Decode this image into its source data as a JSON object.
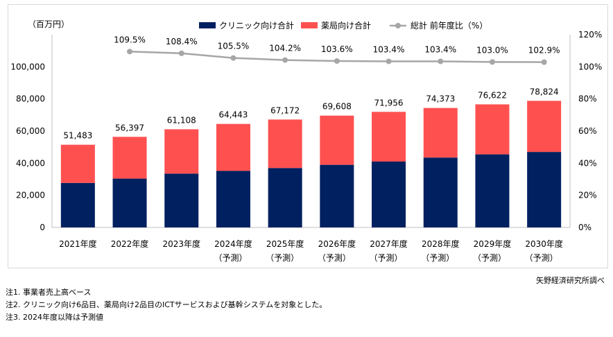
{
  "chart_data": {
    "type": "bar",
    "stacked": true,
    "y_unit_label": "（百万円）",
    "categories": [
      [
        "2021年度",
        ""
      ],
      [
        "2022年度",
        ""
      ],
      [
        "2023年度",
        ""
      ],
      [
        "2024年度",
        "（予測）"
      ],
      [
        "2025年度",
        "（予測）"
      ],
      [
        "2026年度",
        "（予測）"
      ],
      [
        "2027年度",
        "（予測）"
      ],
      [
        "2028年度",
        "（予測）"
      ],
      [
        "2029年度",
        "（予測）"
      ],
      [
        "2030年度",
        "（予測）"
      ]
    ],
    "series": [
      {
        "name": "クリニック向け合計",
        "color": "#002060",
        "values": [
          27700,
          30400,
          33500,
          35200,
          37000,
          39000,
          41000,
          43500,
          45500,
          47000
        ]
      },
      {
        "name": "薬局向け合計",
        "color": "#ff5050",
        "values": [
          23783,
          25997,
          27608,
          29243,
          30172,
          30608,
          30956,
          30873,
          31122,
          31824
        ]
      }
    ],
    "totals": [
      51483,
      56397,
      61108,
      64443,
      67172,
      69608,
      71956,
      74373,
      76622,
      78824
    ],
    "total_labels": [
      "51,483",
      "56,397",
      "61,108",
      "64,443",
      "67,172",
      "69,608",
      "71,956",
      "74,373",
      "76,622",
      "78,824"
    ],
    "line_series": {
      "name": "総計 前年度比（%）",
      "color": "#a6a6a6",
      "values": [
        null,
        109.5,
        108.4,
        105.5,
        104.2,
        103.6,
        103.4,
        103.4,
        103.0,
        102.9
      ],
      "labels": [
        "",
        "109.5%",
        "108.4%",
        "105.5%",
        "104.2%",
        "103.6%",
        "103.4%",
        "103.4%",
        "103.0%",
        "102.9%"
      ]
    },
    "y_left": {
      "min": 0,
      "max": 120000,
      "ticks": [
        0,
        20000,
        40000,
        60000,
        80000,
        100000
      ],
      "tick_labels": [
        "0",
        "20,000",
        "40,000",
        "60,000",
        "80,000",
        "100,000"
      ]
    },
    "y_right": {
      "min": 0,
      "max": 120,
      "ticks": [
        0,
        20,
        40,
        60,
        80,
        100,
        120
      ],
      "tick_labels": [
        "0%",
        "20%",
        "40%",
        "60%",
        "80%",
        "100%",
        "120%"
      ]
    },
    "legend_position": "top",
    "grid": false
  },
  "source": "矢野経済研究所調べ",
  "notes": [
    "注1.  事業者売上高ベース",
    "注2.  クリニック向け6品目、薬局向け2品目のICTサービスおよび基幹システムを対象とした。",
    "注3.  2024年度以降は予測値"
  ]
}
